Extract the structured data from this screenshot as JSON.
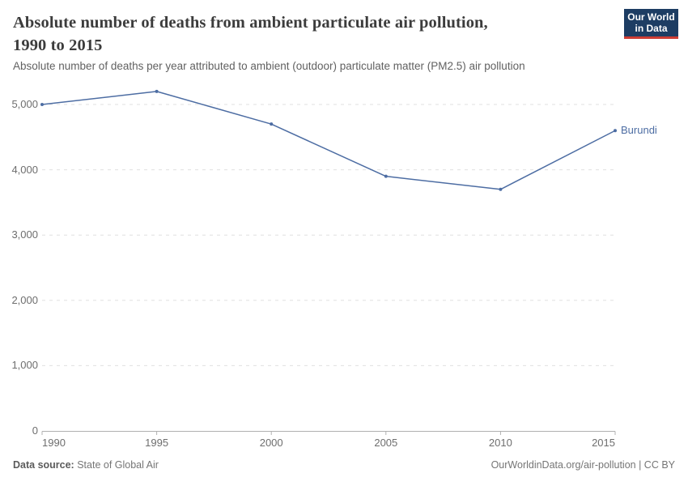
{
  "header": {
    "title_lines": [
      "Absolute number of deaths from ambient particulate air pollution,",
      "1990 to 2015"
    ],
    "subtitle": "Absolute number of deaths per year attributed to ambient (outdoor) particulate matter (PM2.5) air pollution",
    "logo": {
      "line1": "Our World",
      "line2": "in Data",
      "bg_color": "#1d3d63",
      "stripe_color": "#cd3d34"
    }
  },
  "chart_data": {
    "type": "line",
    "title": "Absolute number of deaths from ambient particulate air pollution, 1990 to 2015",
    "xlabel": "",
    "ylabel": "",
    "xlim": [
      1990,
      2015
    ],
    "ylim": [
      0,
      5280
    ],
    "grid": "horizontal dashed",
    "legend_position": "end-of-line label",
    "x_ticks": [
      1990,
      1995,
      2000,
      2005,
      2010,
      2015
    ],
    "x_tick_labels": [
      "1990",
      "1995",
      "2000",
      "2005",
      "2010",
      "2015"
    ],
    "y_ticks": [
      0,
      1000,
      2000,
      3000,
      4000,
      5000
    ],
    "y_tick_labels": [
      "0",
      "1,000",
      "2,000",
      "3,000",
      "4,000",
      "5,000"
    ],
    "series": [
      {
        "name": "Burundi",
        "color": "#4d6da3",
        "x": [
          1990,
          1995,
          2000,
          2005,
          2010,
          2015
        ],
        "values": [
          5000,
          5200,
          4700,
          3900,
          3700,
          4600
        ]
      }
    ],
    "end_label": "Burundi",
    "axis_color": "#b0b0b0",
    "grid_color": "#e0e0e0"
  },
  "footer": {
    "source_label": "Data source:",
    "source_value": " State of Global Air",
    "attribution": "OurWorldinData.org/air-pollution | CC BY"
  }
}
